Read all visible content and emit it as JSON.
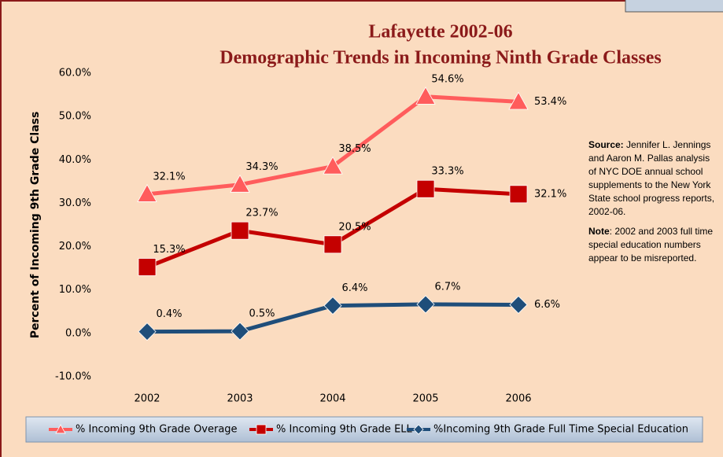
{
  "chart_data": {
    "type": "line",
    "title": "Lafayette 2002-06",
    "subtitle": "Demographic Trends in Incoming Ninth Grade Classes",
    "y_label": "Percent of Incoming 9th Grade Class",
    "categories": [
      "2002",
      "2003",
      "2004",
      "2005",
      "2006"
    ],
    "ylim": [
      -10,
      60
    ],
    "yticks": [
      {
        "value": -10,
        "label": "-10.0%"
      },
      {
        "value": 0,
        "label": "0.0%"
      },
      {
        "value": 10,
        "label": "10.0%"
      },
      {
        "value": 20,
        "label": "20.0%"
      },
      {
        "value": 30,
        "label": "30.0%"
      },
      {
        "value": 40,
        "label": "40.0%"
      },
      {
        "value": 50,
        "label": "50.0%"
      },
      {
        "value": 60,
        "label": "60.0%"
      }
    ],
    "legend": "bottom",
    "series": [
      {
        "name": "% Incoming 9th Grade Overage",
        "color": "#ff5c5c",
        "marker": "triangle",
        "values": [
          32.1,
          34.3,
          38.5,
          54.6,
          53.4
        ],
        "value_labels": [
          "32.1%",
          "34.3%",
          "38.5%",
          "54.6%",
          "53.4%"
        ]
      },
      {
        "name": "% Incoming 9th Grade ELL",
        "color": "#c40000",
        "marker": "square",
        "values": [
          15.3,
          23.7,
          20.5,
          33.3,
          32.1
        ],
        "value_labels": [
          "15.3%",
          "23.7%",
          "20.5%",
          "33.3%",
          "32.1%"
        ]
      },
      {
        "name": "%Incoming 9th Grade Full Time Special Education",
        "color": "#1f4e7a",
        "marker": "diamond",
        "values": [
          0.4,
          0.5,
          6.4,
          6.7,
          6.6
        ],
        "value_labels": [
          "0.4%",
          "0.5%",
          "6.4%",
          "6.7%",
          "6.6%"
        ]
      }
    ],
    "source": {
      "label": "Source:",
      "text": "Jennifer L. Jennings and Aaron M. Pallas analysis of NYC DOE annual school supplements to the New York State school progress reports, 2002-06."
    },
    "note": {
      "label": "Note",
      "text": ": 2002 and 2003 full time special education numbers appear to be misreported."
    }
  }
}
